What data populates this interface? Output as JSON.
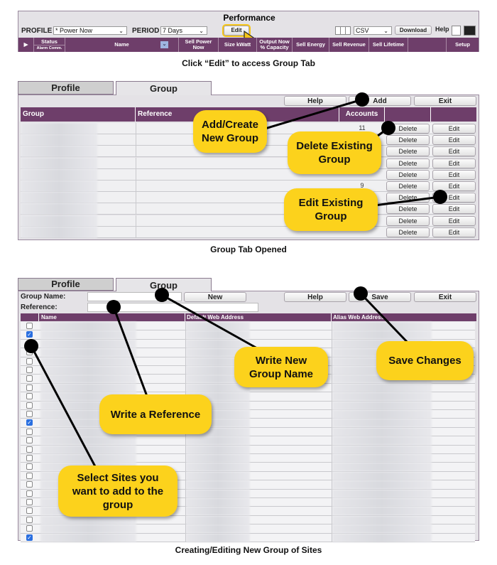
{
  "section1": {
    "title": "Performance",
    "profile_label": "PROFILE",
    "profile_value": "* Power Now",
    "period_label": "PERIOD",
    "period_value": "7 Days",
    "edit_button": "Edit",
    "export_format": "CSV",
    "download_button": "Download",
    "help_label": "Help",
    "columns": [
      "Status",
      "Name",
      "Sell Power Now",
      "Size kWatt",
      "Output Now % Capacity",
      "Sell Energy",
      "Sell Revenue",
      "Sell Lifetime",
      "",
      "Setup"
    ],
    "status_sub": [
      "Alarm",
      "Comm."
    ],
    "caption": "Click “Edit” to access Group Tab"
  },
  "section2": {
    "tabs": [
      "Profile",
      "Group"
    ],
    "active_tab": "Group",
    "buttons": {
      "help": "Help",
      "add": "Add",
      "exit": "Exit"
    },
    "columns": [
      "Group",
      "Reference",
      "Accounts",
      "",
      ""
    ],
    "rows": [
      {
        "accounts": "11",
        "delete": "Delete",
        "edit": "Edit"
      },
      {
        "accounts": "",
        "delete": "Delete",
        "edit": "Edit"
      },
      {
        "accounts": "",
        "delete": "Delete",
        "edit": "Edit"
      },
      {
        "accounts": "",
        "delete": "Delete",
        "edit": "Edit"
      },
      {
        "accounts": "",
        "delete": "Delete",
        "edit": "Edit"
      },
      {
        "accounts": "9",
        "delete": "Delete",
        "edit": "Edit"
      },
      {
        "accounts": "",
        "delete": "Delete",
        "edit": "Edit"
      },
      {
        "accounts": "",
        "delete": "Delete",
        "edit": "Edit"
      },
      {
        "accounts": "",
        "delete": "Delete",
        "edit": "Edit"
      },
      {
        "accounts": "",
        "delete": "Delete",
        "edit": "Edit"
      }
    ],
    "callouts": {
      "add": "Add/Create New Group",
      "delete": "Delete Existing Group",
      "edit": "Edit Existing Group"
    },
    "caption": "Group Tab Opened"
  },
  "section3": {
    "tabs": [
      "Profile",
      "Group"
    ],
    "active_tab": "Group",
    "group_name_label": "Group Name:",
    "group_name_value": "",
    "reference_label": "Reference:",
    "reference_value": "",
    "buttons": {
      "new": "New",
      "help": "Help",
      "save": "Save",
      "exit": "Exit"
    },
    "columns": [
      "Name",
      "Default Web Address",
      "Alias Web Address"
    ],
    "checked": [
      false,
      true,
      false,
      false,
      false,
      false,
      false,
      false,
      false,
      false,
      false,
      true,
      false,
      false,
      false,
      false,
      false,
      false,
      false,
      false,
      false,
      false,
      false,
      false,
      true
    ],
    "callouts": {
      "group_name": "Write New Group Name",
      "reference": "Write a Reference",
      "save": "Save Changes",
      "select": "Select Sites you want to add to the group"
    },
    "caption": "Creating/Editing New Group of Sites"
  },
  "colors": {
    "header_purple": "#6e3e6a",
    "callout_yellow": "#fcd21c",
    "checkbox_blue": "#2a6fe0"
  }
}
